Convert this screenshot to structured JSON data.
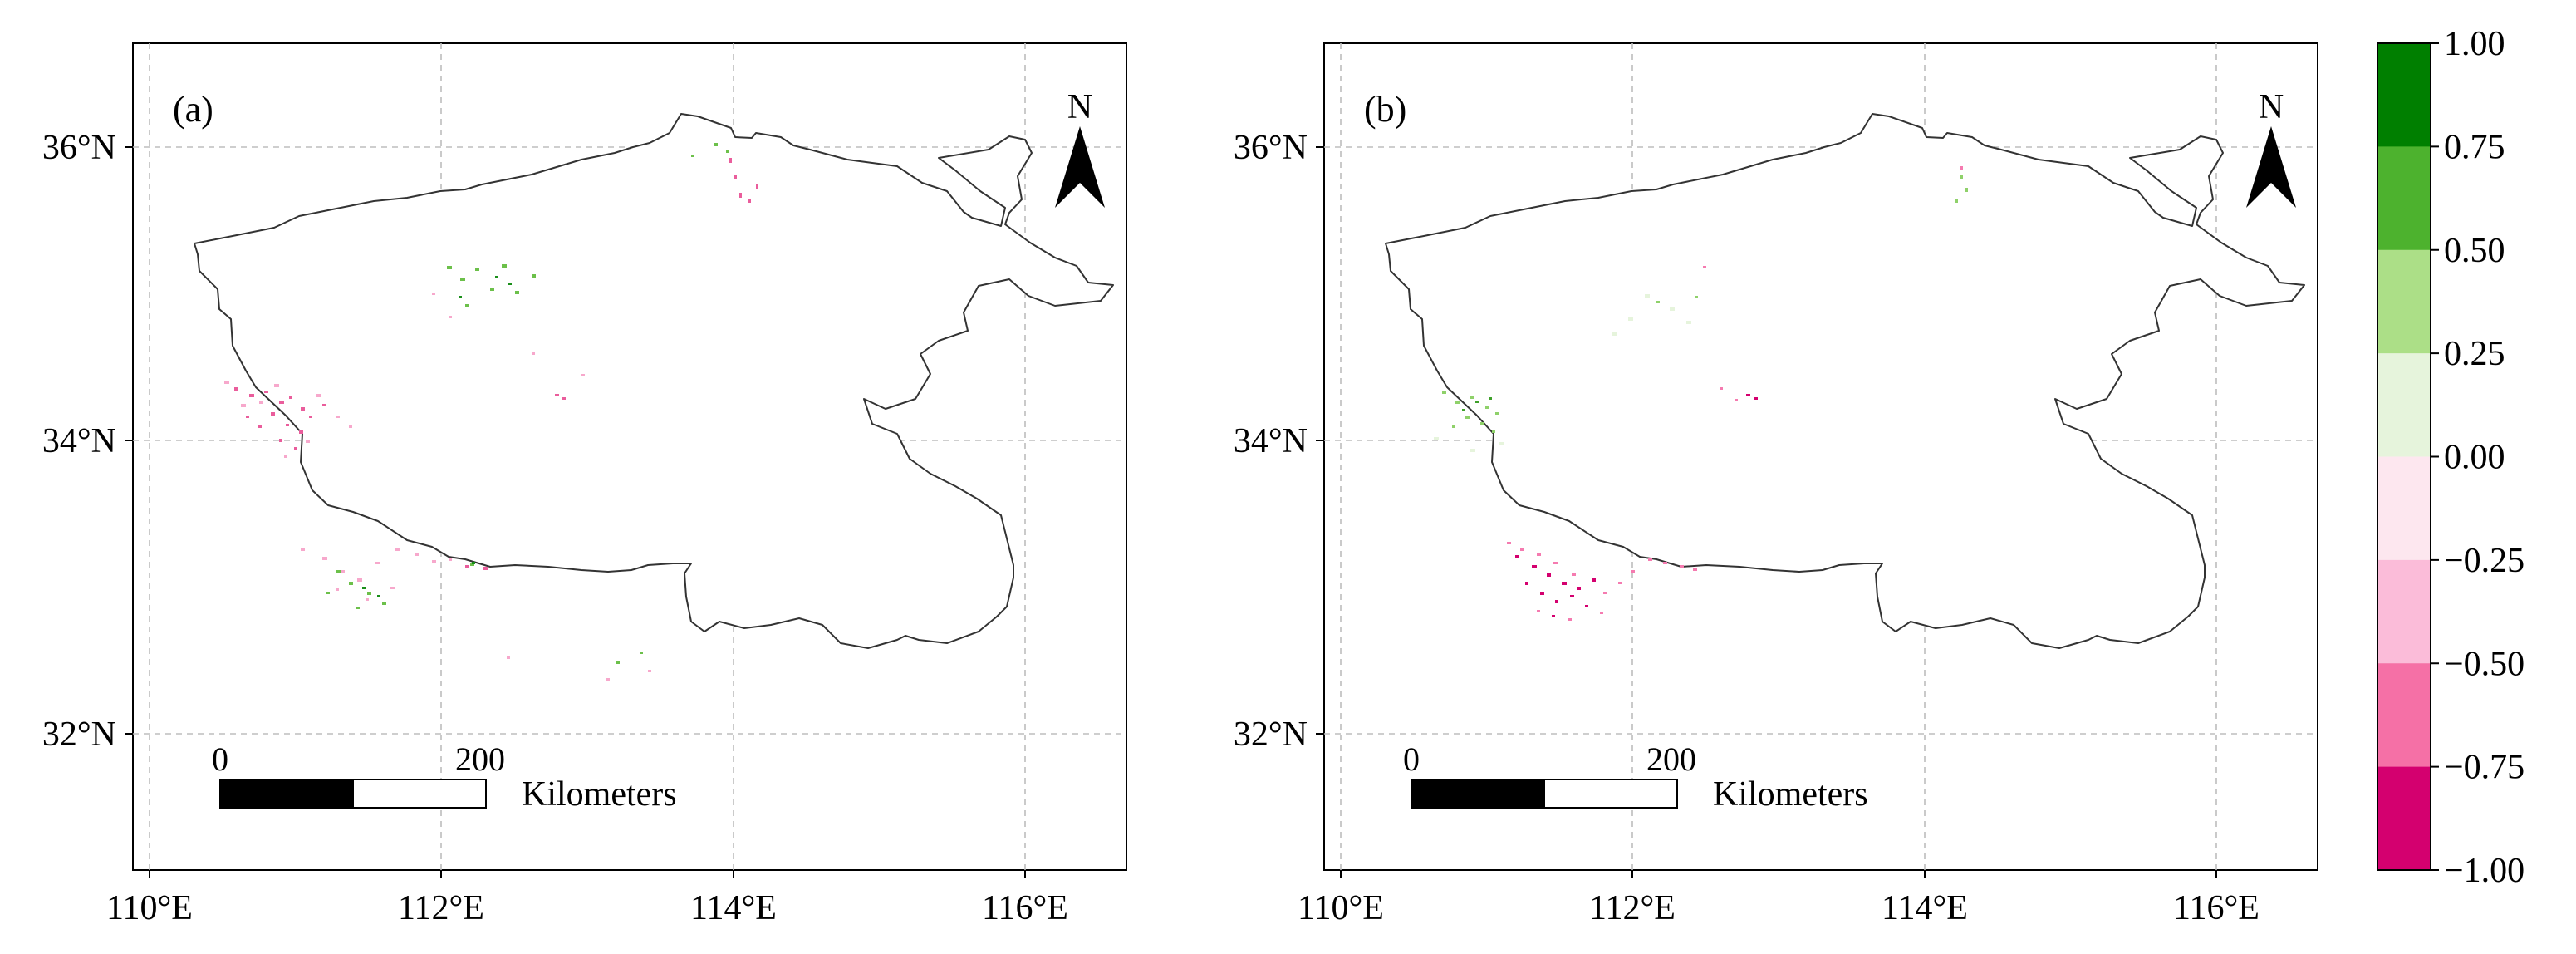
{
  "figure": {
    "panels": [
      {
        "id": "a",
        "label": "(a)",
        "x_ticks": [
          "110°E",
          "112°E",
          "114°E",
          "116°E"
        ],
        "y_ticks": [
          "36°N",
          "34°N",
          "32°N"
        ],
        "north_arrow": "N",
        "scale_bar": {
          "start": "0",
          "end": "200",
          "unit": "Kilometers"
        }
      },
      {
        "id": "b",
        "label": "(b)",
        "x_ticks": [
          "110°E",
          "112°E",
          "114°E",
          "116°E"
        ],
        "y_ticks": [
          "36°N",
          "34°N",
          "32°N"
        ],
        "north_arrow": "N",
        "scale_bar": {
          "start": "0",
          "end": "200",
          "unit": "Kilometers"
        }
      }
    ],
    "colorbar": {
      "ticks": [
        "1.00",
        "0.75",
        "0.50",
        "0.25",
        "0.00",
        "−0.25",
        "−0.50",
        "−0.75",
        "−1.00"
      ],
      "class_colors": [
        "#007f00",
        "#4db22e",
        "#acdf87",
        "#e6f4dc",
        "#fde7ef",
        "#fbbcd9",
        "#f570a6",
        "#d4006f"
      ]
    },
    "map": {
      "lon_range": [
        110,
        116
      ],
      "lat_range": [
        32,
        36
      ],
      "boundary_color": "#333333",
      "grid": "dashed"
    }
  }
}
